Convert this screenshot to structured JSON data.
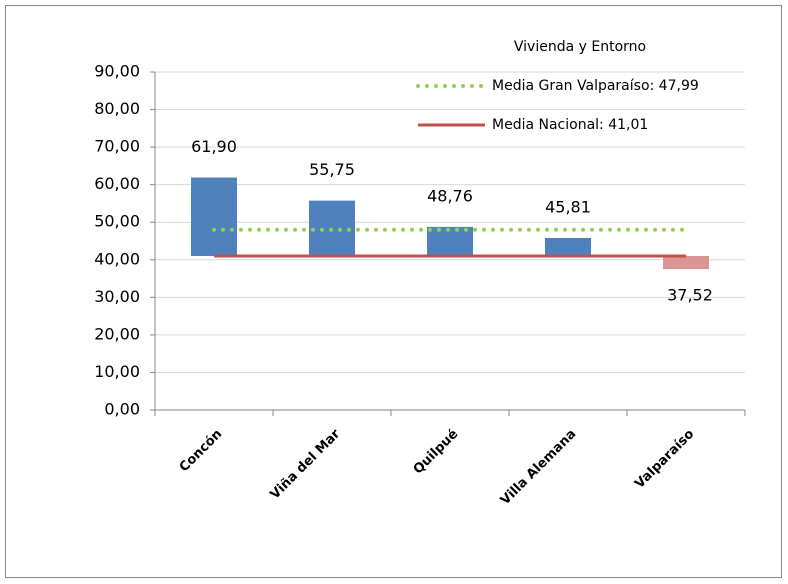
{
  "chart_data": {
    "type": "floating-bar",
    "legend_title": "Vivienda y Entorno",
    "categories": [
      "Concón",
      "Viña del Mar",
      "Quilpué",
      "Villa Alemana",
      "Valparaíso"
    ],
    "values": [
      61.9,
      55.75,
      48.76,
      45.81,
      37.52
    ],
    "value_labels": [
      "61,90",
      "55,75",
      "48,76",
      "45,81",
      "37,52"
    ],
    "colors": [
      "#4f81bd",
      "#4f81bd",
      "#4f81bd",
      "#4f81bd",
      "#d99694"
    ],
    "reference_lines": [
      {
        "name": "Media Gran Valparaíso: 47,99",
        "value": 47.99,
        "color": "#92d050",
        "style": "dotted"
      },
      {
        "name": "Media Nacional: 41,01",
        "value": 41.01,
        "color": "#c0504d",
        "style": "solid"
      }
    ],
    "bar_base": 1,
    "ylim": [
      0,
      90
    ],
    "yticks": [
      {
        "value": 0,
        "label": "0,00"
      },
      {
        "value": 10,
        "label": "10,00"
      },
      {
        "value": 20,
        "label": "20,00"
      },
      {
        "value": 30,
        "label": "30,00"
      },
      {
        "value": 40,
        "label": "40,00"
      },
      {
        "value": 50,
        "label": "50,00"
      },
      {
        "value": 60,
        "label": "60,00"
      },
      {
        "value": 70,
        "label": "70,00"
      },
      {
        "value": 80,
        "label": "80,00"
      },
      {
        "value": 90,
        "label": "90,00"
      }
    ],
    "grid": true
  }
}
